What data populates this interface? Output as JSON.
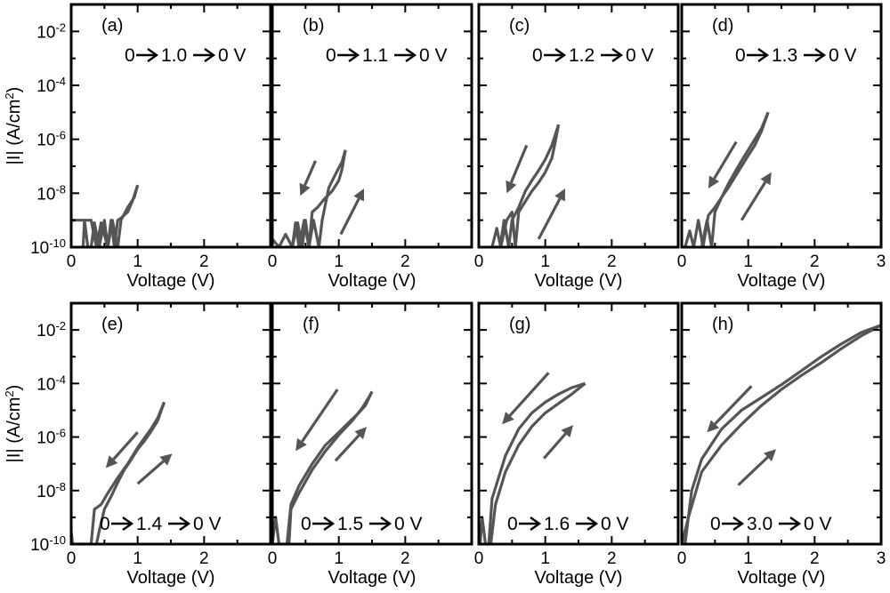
{
  "chart_data": [
    {
      "type": "line",
      "panel": "(a)",
      "sweep": [
        "0",
        "1.0",
        "0 V"
      ],
      "xlabel": "Voltage (V)",
      "xlim": [
        0,
        3
      ],
      "ylim": [
        1e-10,
        0.1
      ],
      "yscale": "log",
      "x_ticks": [
        "0",
        "1",
        "2"
      ],
      "forward": [
        [
          0,
          1e-09
        ],
        [
          0.2,
          1e-09
        ],
        [
          0.25,
          1e-10
        ],
        [
          0.3,
          1e-10
        ],
        [
          0.35,
          8e-10
        ],
        [
          0.42,
          1e-10
        ],
        [
          0.5,
          1e-09
        ],
        [
          0.55,
          1e-10
        ],
        [
          0.6,
          1e-09
        ],
        [
          0.65,
          1e-10
        ],
        [
          0.7,
          1e-09
        ],
        [
          0.75,
          1.2e-09
        ],
        [
          0.85,
          2e-09
        ],
        [
          0.92,
          5e-09
        ],
        [
          1.0,
          2e-08
        ]
      ],
      "reverse": [
        [
          1.0,
          2e-08
        ],
        [
          0.95,
          7e-09
        ],
        [
          0.85,
          3e-09
        ],
        [
          0.75,
          1e-09
        ],
        [
          0.7,
          1e-10
        ],
        [
          0.62,
          1e-09
        ],
        [
          0.55,
          1e-10
        ],
        [
          0.45,
          8e-10
        ],
        [
          0.38,
          1e-10
        ],
        [
          0.3,
          1e-09
        ],
        [
          0.2,
          1e-09
        ],
        [
          0.18,
          1e-10
        ]
      ],
      "arrows": []
    },
    {
      "type": "line",
      "panel": "(b)",
      "sweep": [
        "0",
        "1.1",
        "0 V"
      ],
      "xlabel": "Voltage (V)",
      "xlim": [
        0,
        3
      ],
      "ylim": [
        1e-10,
        0.1
      ],
      "yscale": "log",
      "x_ticks": [
        "0",
        "1",
        "2"
      ],
      "forward": [
        [
          0.0,
          2e-10
        ],
        [
          0.1,
          1e-10
        ],
        [
          0.2,
          3e-10
        ],
        [
          0.3,
          1e-10
        ],
        [
          0.38,
          8e-10
        ],
        [
          0.45,
          1e-10
        ],
        [
          0.5,
          1e-09
        ],
        [
          0.55,
          1e-10
        ],
        [
          0.6,
          2e-09
        ],
        [
          0.68,
          3e-09
        ],
        [
          0.78,
          6e-09
        ],
        [
          0.9,
          1.2e-08
        ],
        [
          1.0,
          3e-08
        ],
        [
          1.05,
          8e-08
        ],
        [
          1.1,
          4e-07
        ]
      ],
      "reverse": [
        [
          1.1,
          4e-07
        ],
        [
          1.05,
          1.5e-07
        ],
        [
          0.95,
          5e-08
        ],
        [
          0.85,
          1.6e-08
        ],
        [
          0.8,
          4e-09
        ],
        [
          0.75,
          1e-09
        ],
        [
          0.7,
          1e-10
        ],
        [
          0.62,
          1e-09
        ],
        [
          0.55,
          1e-10
        ],
        [
          0.48,
          1e-09
        ],
        [
          0.4,
          1e-10
        ],
        [
          0.35,
          8e-10
        ],
        [
          0.3,
          1e-10
        ],
        [
          0.2,
          1e-10
        ]
      ],
      "arrows": [
        {
          "from": [
            0.65,
            1.6e-07
          ],
          "to": [
            0.42,
            8e-09
          ]
        },
        {
          "from": [
            1.03,
            3e-10
          ],
          "to": [
            1.38,
            1.5e-08
          ]
        }
      ]
    },
    {
      "type": "line",
      "panel": "(c)",
      "sweep": [
        "0",
        "1.2",
        "0 V"
      ],
      "xlabel": "Voltage (V)",
      "xlim": [
        0,
        3
      ],
      "ylim": [
        1e-10,
        0.1
      ],
      "yscale": "log",
      "x_ticks": [
        "0",
        "1",
        "2"
      ],
      "forward": [
        [
          0.2,
          1e-10
        ],
        [
          0.27,
          5e-10
        ],
        [
          0.33,
          1e-10
        ],
        [
          0.42,
          1e-09
        ],
        [
          0.5,
          2e-09
        ],
        [
          0.55,
          1e-10
        ],
        [
          0.6,
          2e-09
        ],
        [
          0.7,
          5e-09
        ],
        [
          0.8,
          1.2e-08
        ],
        [
          0.9,
          2.5e-08
        ],
        [
          1.0,
          6e-08
        ],
        [
          1.1,
          2e-07
        ],
        [
          1.15,
          8e-07
        ],
        [
          1.2,
          3.5e-06
        ]
      ],
      "reverse": [
        [
          1.2,
          3.5e-06
        ],
        [
          1.1,
          6e-07
        ],
        [
          1.0,
          1.8e-07
        ],
        [
          0.9,
          7e-08
        ],
        [
          0.8,
          3e-08
        ],
        [
          0.7,
          1.2e-08
        ],
        [
          0.6,
          3e-09
        ],
        [
          0.5,
          1e-09
        ],
        [
          0.45,
          1e-10
        ],
        [
          0.38,
          1e-09
        ],
        [
          0.32,
          1e-10
        ],
        [
          0.25,
          1e-10
        ]
      ],
      "arrows": [
        {
          "from": [
            0.72,
            6e-07
          ],
          "to": [
            0.42,
            1e-08
          ]
        },
        {
          "from": [
            0.9,
            2e-10
          ],
          "to": [
            1.3,
            1.5e-08
          ]
        }
      ]
    },
    {
      "type": "line",
      "panel": "(d)",
      "sweep": [
        "0",
        "1.3",
        "0 V"
      ],
      "xlabel": "Voltage (V)",
      "xlim": [
        0,
        3
      ],
      "ylim": [
        1e-10,
        0.1
      ],
      "yscale": "log",
      "x_ticks": [
        "0",
        "1",
        "2",
        "3"
      ],
      "forward": [
        [
          0.05,
          1e-10
        ],
        [
          0.12,
          4e-10
        ],
        [
          0.18,
          1e-10
        ],
        [
          0.25,
          1e-09
        ],
        [
          0.32,
          1e-10
        ],
        [
          0.4,
          1.5e-09
        ],
        [
          0.5,
          3e-09
        ],
        [
          0.6,
          7e-09
        ],
        [
          0.7,
          1.6e-08
        ],
        [
          0.8,
          4e-08
        ],
        [
          0.9,
          1e-07
        ],
        [
          1.0,
          2.5e-07
        ],
        [
          1.1,
          6e-07
        ],
        [
          1.2,
          2e-06
        ],
        [
          1.3,
          1e-05
        ]
      ],
      "reverse": [
        [
          1.3,
          1e-05
        ],
        [
          1.2,
          2.5e-06
        ],
        [
          1.1,
          1e-06
        ],
        [
          1.0,
          4e-07
        ],
        [
          0.9,
          1.6e-07
        ],
        [
          0.8,
          6e-08
        ],
        [
          0.7,
          2.2e-08
        ],
        [
          0.6,
          7e-09
        ],
        [
          0.5,
          2e-09
        ],
        [
          0.45,
          1e-10
        ],
        [
          0.38,
          1e-09
        ],
        [
          0.3,
          1e-10
        ]
      ],
      "arrows": [
        {
          "from": [
            0.82,
            8e-07
          ],
          "to": [
            0.4,
            1.5e-08
          ]
        },
        {
          "from": [
            0.9,
            1e-09
          ],
          "to": [
            1.35,
            6e-08
          ]
        }
      ]
    },
    {
      "type": "line",
      "panel": "(e)",
      "sweep": [
        "0",
        "1.4",
        "0 V"
      ],
      "xlabel": "Voltage (V)",
      "xlim": [
        0,
        3
      ],
      "ylim": [
        1e-10,
        0.1
      ],
      "yscale": "log",
      "x_ticks": [
        "0",
        "1",
        "2"
      ],
      "forward": [
        [
          0.0,
          3e-10
        ],
        [
          0.02,
          1e-10
        ],
        [
          0.3,
          1e-10
        ],
        [
          0.35,
          2e-09
        ],
        [
          0.45,
          3e-09
        ],
        [
          0.55,
          8e-09
        ],
        [
          0.7,
          3e-08
        ],
        [
          0.85,
          1e-07
        ],
        [
          1.0,
          4e-07
        ],
        [
          1.1,
          9e-07
        ],
        [
          1.2,
          2e-06
        ],
        [
          1.3,
          5e-06
        ],
        [
          1.4,
          2e-05
        ]
      ],
      "reverse": [
        [
          1.4,
          2e-05
        ],
        [
          1.3,
          4e-06
        ],
        [
          1.2,
          1.6e-06
        ],
        [
          1.1,
          7e-07
        ],
        [
          1.0,
          3.5e-07
        ],
        [
          0.9,
          1.4e-07
        ],
        [
          0.8,
          6e-08
        ],
        [
          0.7,
          2e-08
        ],
        [
          0.6,
          6e-09
        ],
        [
          0.5,
          2e-09
        ],
        [
          0.42,
          3e-10
        ],
        [
          0.38,
          1e-10
        ]
      ],
      "arrows": [
        {
          "from": [
            1.0,
            1.5e-06
          ],
          "to": [
            0.52,
            7e-08
          ]
        },
        {
          "from": [
            1.0,
            1.8e-08
          ],
          "to": [
            1.52,
            2.4e-07
          ]
        }
      ]
    },
    {
      "type": "line",
      "panel": "(f)",
      "sweep": [
        "0",
        "1.5",
        "0 V"
      ],
      "xlabel": "Voltage (V)",
      "xlim": [
        0,
        3
      ],
      "ylim": [
        1e-10,
        0.1
      ],
      "yscale": "log",
      "x_ticks": [
        "0",
        "1",
        "2"
      ],
      "forward": [
        [
          0.0,
          1e-10
        ],
        [
          0.05,
          1e-09
        ],
        [
          0.1,
          1e-10
        ],
        [
          0.25,
          1e-10
        ],
        [
          0.28,
          2e-09
        ],
        [
          0.4,
          8e-09
        ],
        [
          0.6,
          6e-08
        ],
        [
          0.8,
          3e-07
        ],
        [
          1.0,
          1.2e-06
        ],
        [
          1.2,
          4e-06
        ],
        [
          1.35,
          1.2e-05
        ],
        [
          1.45,
          3e-05
        ],
        [
          1.5,
          5e-05
        ]
      ],
      "reverse": [
        [
          1.5,
          5e-05
        ],
        [
          1.4,
          1.5e-05
        ],
        [
          1.3,
          8e-06
        ],
        [
          1.15,
          3.5e-06
        ],
        [
          1.0,
          1.5e-06
        ],
        [
          0.8,
          5e-07
        ],
        [
          0.6,
          1e-07
        ],
        [
          0.4,
          1.5e-08
        ],
        [
          0.28,
          3e-09
        ],
        [
          0.22,
          1e-10
        ]
      ],
      "arrows": [
        {
          "from": [
            0.98,
            6e-05
          ],
          "to": [
            0.35,
            3e-07
          ]
        },
        {
          "from": [
            0.95,
            1.3e-07
          ],
          "to": [
            1.42,
            2.4e-06
          ]
        }
      ]
    },
    {
      "type": "line",
      "panel": "(g)",
      "sweep": [
        "0",
        "1.6",
        "0 V"
      ],
      "xlabel": "Voltage (V)",
      "xlim": [
        0,
        3
      ],
      "ylim": [
        1e-10,
        0.1
      ],
      "yscale": "log",
      "x_ticks": [
        "0",
        "1",
        "2"
      ],
      "forward": [
        [
          0.02,
          1e-10
        ],
        [
          0.05,
          1e-09
        ],
        [
          0.1,
          1e-10
        ],
        [
          0.15,
          1e-10
        ],
        [
          0.2,
          5e-09
        ],
        [
          0.4,
          2e-07
        ],
        [
          0.6,
          2e-06
        ],
        [
          0.8,
          8e-06
        ],
        [
          1.0,
          2e-05
        ],
        [
          1.2,
          4e-05
        ],
        [
          1.4,
          7e-05
        ],
        [
          1.6,
          0.0001
        ]
      ],
      "reverse": [
        [
          1.6,
          0.0001
        ],
        [
          1.4,
          4e-05
        ],
        [
          1.2,
          1.8e-05
        ],
        [
          1.0,
          8e-06
        ],
        [
          0.8,
          2.5e-06
        ],
        [
          0.6,
          5e-07
        ],
        [
          0.4,
          5e-08
        ],
        [
          0.25,
          3e-09
        ],
        [
          0.18,
          1e-10
        ]
      ],
      "arrows": [
        {
          "from": [
            1.05,
            0.00025
          ],
          "to": [
            0.35,
            3e-06
          ]
        },
        {
          "from": [
            0.98,
            1.6e-07
          ],
          "to": [
            1.42,
            2.8e-06
          ]
        }
      ]
    },
    {
      "type": "line",
      "panel": "(h)",
      "sweep": [
        "0",
        "3.0",
        "0 V"
      ],
      "xlabel": "Voltage (V)",
      "xlim": [
        0,
        3
      ],
      "ylim": [
        1e-10,
        0.1
      ],
      "yscale": "log",
      "x_ticks": [
        "0",
        "1",
        "2",
        "3"
      ],
      "forward": [
        [
          0.0,
          1e-10
        ],
        [
          0.1,
          1e-09
        ],
        [
          0.3,
          5e-08
        ],
        [
          0.6,
          5e-07
        ],
        [
          0.9,
          3e-06
        ],
        [
          1.2,
          1.5e-05
        ],
        [
          1.5,
          6e-05
        ],
        [
          1.8,
          0.0002
        ],
        [
          2.1,
          0.0006
        ],
        [
          2.4,
          0.002
        ],
        [
          2.7,
          0.006
        ],
        [
          3.0,
          0.015
        ]
      ],
      "reverse": [
        [
          3.0,
          0.015
        ],
        [
          2.7,
          0.008
        ],
        [
          2.4,
          0.003
        ],
        [
          2.1,
          0.001
        ],
        [
          1.8,
          0.0003
        ],
        [
          1.5,
          9e-05
        ],
        [
          1.2,
          3e-05
        ],
        [
          0.9,
          1e-05
        ],
        [
          0.6,
          2e-06
        ],
        [
          0.3,
          1.5e-07
        ],
        [
          0.15,
          1e-08
        ],
        [
          0.05,
          1e-10
        ]
      ],
      "arrows": [
        {
          "from": [
            1.05,
            8e-05
          ],
          "to": [
            0.38,
            1.5e-06
          ]
        },
        {
          "from": [
            0.85,
            1.6e-08
          ],
          "to": [
            1.42,
            3.5e-07
          ]
        }
      ]
    }
  ],
  "ylabel_row1": "|I| (A/cm²)",
  "ylabel_row2": "|I| (A/cm²)",
  "y_tick_mantissa": "10",
  "y_tick_exponents": [
    "-2",
    "-4",
    "-6",
    "-8",
    "-10"
  ],
  "colors": {
    "curve": "#555555",
    "frame": "#000000"
  }
}
